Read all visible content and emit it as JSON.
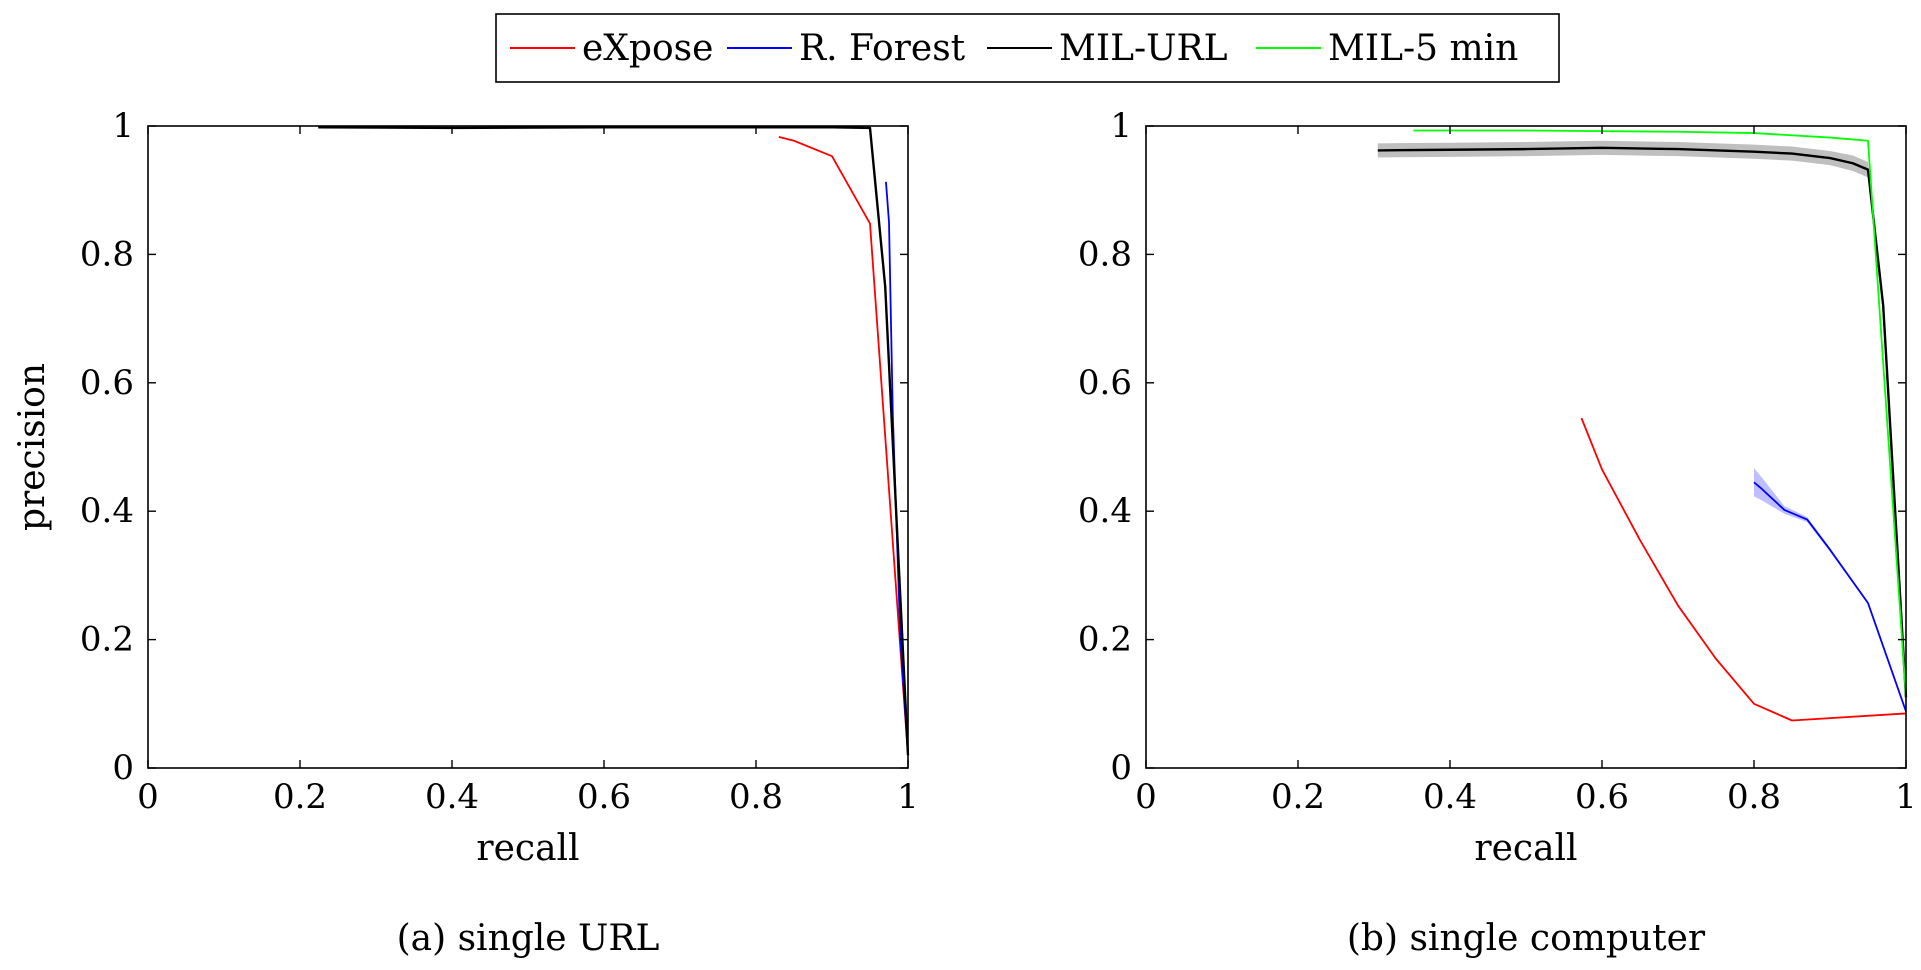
{
  "legend": [
    {
      "name": "eXpose",
      "color": "#ff0000"
    },
    {
      "name": "R. Forest",
      "color": "#0000ff"
    },
    {
      "name": "MIL-URL",
      "color": "#000000"
    },
    {
      "name": "MIL-5 min",
      "color": "#00ff00"
    }
  ],
  "chart_data": [
    {
      "type": "line",
      "caption": "(a) single URL",
      "xlabel": "recall",
      "ylabel": "precision",
      "xlim": [
        0,
        1
      ],
      "ylim": [
        0,
        1
      ],
      "xticks": [
        0,
        0.2,
        0.4,
        0.6,
        0.8,
        1
      ],
      "xtick_labels": [
        "0",
        "0.2",
        "0.4",
        "0.6",
        "0.8",
        "1"
      ],
      "yticks": [
        0,
        0.2,
        0.4,
        0.6,
        0.8,
        1
      ],
      "ytick_labels": [
        "0",
        "0.2",
        "0.4",
        "0.6",
        "0.8",
        "1"
      ],
      "grid": false,
      "series": [
        {
          "name": "eXpose",
          "color": "#ff0000",
          "x": [
            0.83,
            0.85,
            0.9,
            0.95,
            1.0
          ],
          "y": [
            0.983,
            0.977,
            0.953,
            0.848,
            0.02
          ]
        },
        {
          "name": "R. Forest",
          "color": "#0000ff",
          "x": [
            0.971,
            0.975,
            0.98,
            0.99,
            1.0
          ],
          "y": [
            0.913,
            0.85,
            0.55,
            0.2,
            0.02
          ]
        },
        {
          "name": "MIL-URL",
          "color": "#000000",
          "x": [
            0.224,
            0.4,
            0.6,
            0.8,
            0.9,
            0.95,
            0.97,
            1.0
          ],
          "y": [
            0.998,
            0.997,
            0.998,
            0.998,
            0.998,
            0.997,
            0.75,
            0.02
          ]
        }
      ]
    },
    {
      "type": "line",
      "caption": "(b) single computer",
      "xlabel": "recall",
      "ylabel": "",
      "xlim": [
        0,
        1
      ],
      "ylim": [
        0,
        1
      ],
      "xticks": [
        0,
        0.2,
        0.4,
        0.6,
        0.8,
        1
      ],
      "xtick_labels": [
        "0",
        "0.2",
        "0.4",
        "0.6",
        "0.8",
        "1"
      ],
      "yticks": [
        0,
        0.2,
        0.4,
        0.6,
        0.8,
        1
      ],
      "ytick_labels": [
        "0",
        "0.2",
        "0.4",
        "0.6",
        "0.8",
        "1"
      ],
      "grid": false,
      "series": [
        {
          "name": "eXpose",
          "color": "#ff0000",
          "x": [
            0.573,
            0.6,
            0.65,
            0.7,
            0.75,
            0.8,
            0.85,
            1.0
          ],
          "y": [
            0.545,
            0.465,
            0.355,
            0.253,
            0.17,
            0.1,
            0.074,
            0.085
          ]
        },
        {
          "name": "R. Forest",
          "color": "#0000ff",
          "x": [
            0.8,
            0.81,
            0.84,
            0.87,
            0.9,
            0.95,
            1.0
          ],
          "y": [
            0.445,
            0.435,
            0.402,
            0.387,
            0.34,
            0.257,
            0.088
          ],
          "band": [
            0.022,
            0.018,
            0.006,
            0.004,
            0.003,
            0.002,
            0.002
          ]
        },
        {
          "name": "MIL-URL",
          "color": "#000000",
          "x": [
            0.305,
            0.4,
            0.5,
            0.6,
            0.7,
            0.8,
            0.85,
            0.9,
            0.93,
            0.95,
            0.97,
            1.0
          ],
          "y": [
            0.962,
            0.963,
            0.964,
            0.966,
            0.964,
            0.96,
            0.957,
            0.95,
            0.942,
            0.932,
            0.72,
            0.11
          ],
          "band": [
            0.011,
            0.011,
            0.011,
            0.011,
            0.011,
            0.011,
            0.011,
            0.011,
            0.012,
            0.012,
            0.01,
            0.005
          ]
        },
        {
          "name": "MIL-5 min",
          "color": "#00ff00",
          "x": [
            0.352,
            0.5,
            0.6,
            0.7,
            0.8,
            0.9,
            0.95,
            1.0
          ],
          "y": [
            0.993,
            0.993,
            0.992,
            0.991,
            0.989,
            0.982,
            0.977,
            0.11
          ]
        }
      ]
    }
  ]
}
